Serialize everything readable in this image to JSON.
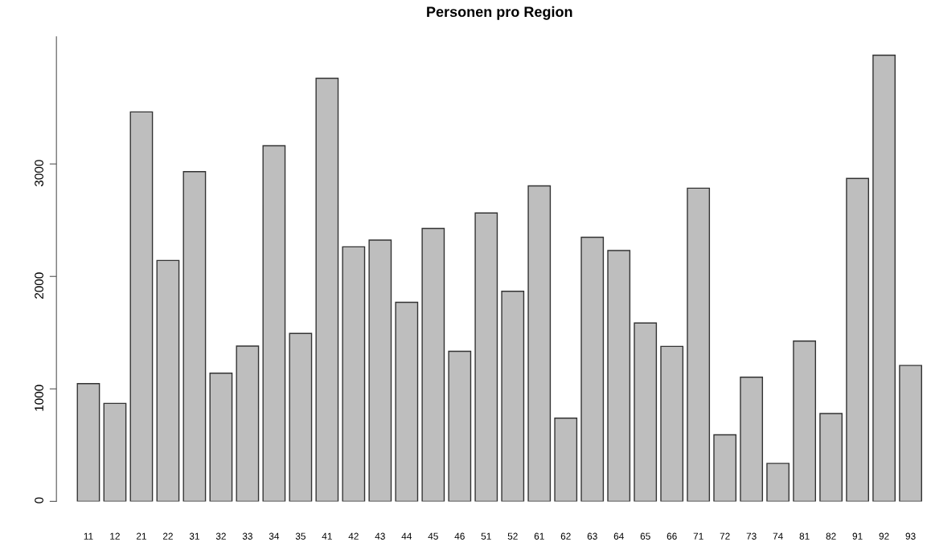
{
  "chart_data": {
    "type": "bar",
    "title": "Personen pro Region",
    "categories": [
      "11",
      "12",
      "21",
      "22",
      "31",
      "32",
      "33",
      "34",
      "35",
      "41",
      "42",
      "43",
      "44",
      "45",
      "46",
      "51",
      "52",
      "61",
      "62",
      "63",
      "64",
      "65",
      "66",
      "71",
      "72",
      "73",
      "74",
      "81",
      "82",
      "91",
      "92",
      "93"
    ],
    "values": [
      1047,
      871,
      3463,
      2142,
      2932,
      1140,
      1381,
      3162,
      1493,
      3762,
      2263,
      2323,
      1770,
      2427,
      1334,
      2564,
      1868,
      2805,
      740,
      2348,
      2230,
      1586,
      1378,
      2784,
      592,
      1104,
      337,
      1425,
      781,
      2871,
      3967,
      1208
    ],
    "color": "#bebebe",
    "ylim": [
      0,
      4130
    ],
    "yticks": [
      0,
      1000,
      2000,
      3000
    ],
    "grid": false,
    "legend": false
  }
}
